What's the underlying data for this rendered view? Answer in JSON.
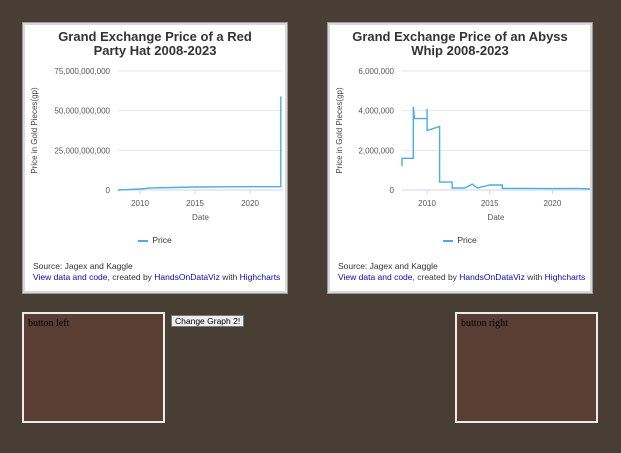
{
  "left_chart": {
    "title_line1": "Grand Exchange Price of a Red",
    "title_line2": "Party Hat 2008-2023",
    "source": "Source: Jagex and Kaggle",
    "link_text": "View data and code",
    "created_by": ", created by ",
    "author": "HandsOnDataViz",
    "with": " with ",
    "tool": "Highcharts"
  },
  "right_chart": {
    "title_line1": "Grand Exchange Price of an Abyss",
    "title_line2": "Whip 2008-2023",
    "source": "Source: Jagex and Kaggle",
    "link_text": "View data and code",
    "created_by": ", created by ",
    "author": "HandsOnDataViz",
    "with": " with ",
    "tool": "Highcharts"
  },
  "change_button_label": "Change Graph 2!",
  "panel_left_label": "button left",
  "panel_right_label": "button right",
  "colors": {
    "line": "#4aaee0",
    "background": "#483e34",
    "panel": "#5a3e34"
  },
  "chart_data": [
    {
      "type": "line",
      "title": "Grand Exchange Price of a Red Party Hat 2008-2023",
      "xlabel": "Date",
      "ylabel": "Price in Gold Pieces(gp)",
      "xlim": [
        2008,
        2023
      ],
      "ylim": [
        0,
        75000000000
      ],
      "xticks": [
        "2010",
        "2015",
        "2020"
      ],
      "xtick_values": [
        2010,
        2015,
        2020
      ],
      "yticks": [
        "0",
        "25,000,000,000",
        "50,000,000,000",
        "75,000,000,000"
      ],
      "ytick_values": [
        0,
        25000000000,
        50000000000,
        75000000000
      ],
      "grid": true,
      "legend": "bottom-center",
      "series": [
        {
          "name": "Price",
          "x": [
            2008.0,
            2010.0,
            2011.0,
            2013.0,
            2015.0,
            2018.0,
            2020.0,
            2022.8,
            2022.8
          ],
          "y": [
            0,
            600000000,
            1300000000,
            1600000000,
            1900000000,
            2000000000,
            2100000000,
            2100000000,
            59000000000
          ]
        }
      ]
    },
    {
      "type": "line",
      "title": "Grand Exchange Price of an Abyss Whip 2008-2023",
      "xlabel": "Date",
      "ylabel": "Price in Gold Pieces(gp)",
      "xlim": [
        2008,
        2023
      ],
      "ylim": [
        0,
        6000000
      ],
      "xticks": [
        "2010",
        "2015",
        "2020"
      ],
      "xtick_values": [
        2010,
        2015,
        2020
      ],
      "yticks": [
        "0",
        "2,000,000",
        "4,000,000",
        "6,000,000"
      ],
      "ytick_values": [
        0,
        2000000,
        4000000,
        6000000
      ],
      "grid": true,
      "legend": "bottom-center",
      "series": [
        {
          "name": "Price",
          "x": [
            2008.0,
            2008.0,
            2008.9,
            2008.9,
            2009.0,
            2010.0,
            2010.0,
            2010.0,
            2011.0,
            2011.0,
            2012.0,
            2012.0,
            2013.0,
            2013.6,
            2014.0,
            2015.0,
            2016.0,
            2016.0,
            2018.0,
            2020.0,
            2022.0,
            2023.0
          ],
          "y": [
            1200000,
            1600000,
            1600000,
            4200000,
            3600000,
            3600000,
            4100000,
            3000000,
            3200000,
            400000,
            400000,
            100000,
            100000,
            300000,
            100000,
            250000,
            250000,
            80000,
            80000,
            70000,
            80000,
            50000
          ]
        }
      ]
    }
  ]
}
